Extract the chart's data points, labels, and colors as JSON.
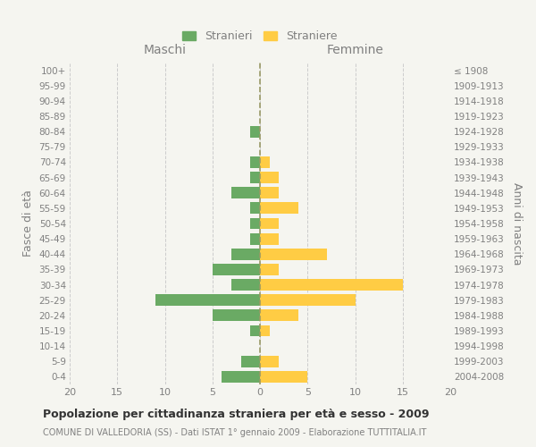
{
  "age_groups": [
    "100+",
    "95-99",
    "90-94",
    "85-89",
    "80-84",
    "75-79",
    "70-74",
    "65-69",
    "60-64",
    "55-59",
    "50-54",
    "45-49",
    "40-44",
    "35-39",
    "30-34",
    "25-29",
    "20-24",
    "15-19",
    "10-14",
    "5-9",
    "0-4"
  ],
  "birth_years": [
    "≤ 1908",
    "1909-1913",
    "1914-1918",
    "1919-1923",
    "1924-1928",
    "1929-1933",
    "1934-1938",
    "1939-1943",
    "1944-1948",
    "1949-1953",
    "1954-1958",
    "1959-1963",
    "1964-1968",
    "1969-1973",
    "1974-1978",
    "1979-1983",
    "1984-1988",
    "1989-1993",
    "1994-1998",
    "1999-2003",
    "2004-2008"
  ],
  "maschi": [
    0,
    0,
    0,
    0,
    1,
    0,
    1,
    1,
    3,
    1,
    1,
    1,
    3,
    5,
    3,
    11,
    5,
    1,
    0,
    2,
    4
  ],
  "femmine": [
    0,
    0,
    0,
    0,
    0,
    0,
    1,
    2,
    2,
    4,
    2,
    2,
    7,
    2,
    15,
    10,
    4,
    1,
    0,
    2,
    5
  ],
  "color_maschi": "#6aaa64",
  "color_femmine": "#ffcc44",
  "xlim": 20,
  "title": "Popolazione per cittadinanza straniera per età e sesso - 2009",
  "subtitle": "COMUNE DI VALLEDORIA (SS) - Dati ISTAT 1° gennaio 2009 - Elaborazione TUTTITALIA.IT",
  "ylabel_left": "Fasce di età",
  "ylabel_right": "Anni di nascita",
  "header_left": "Maschi",
  "header_right": "Femmine",
  "legend_maschi": "Stranieri",
  "legend_femmine": "Straniere",
  "background_color": "#f5f5f0",
  "bar_height": 0.75,
  "grid_color": "#cccccc",
  "text_color": "#808080",
  "center_line_color": "#999966"
}
